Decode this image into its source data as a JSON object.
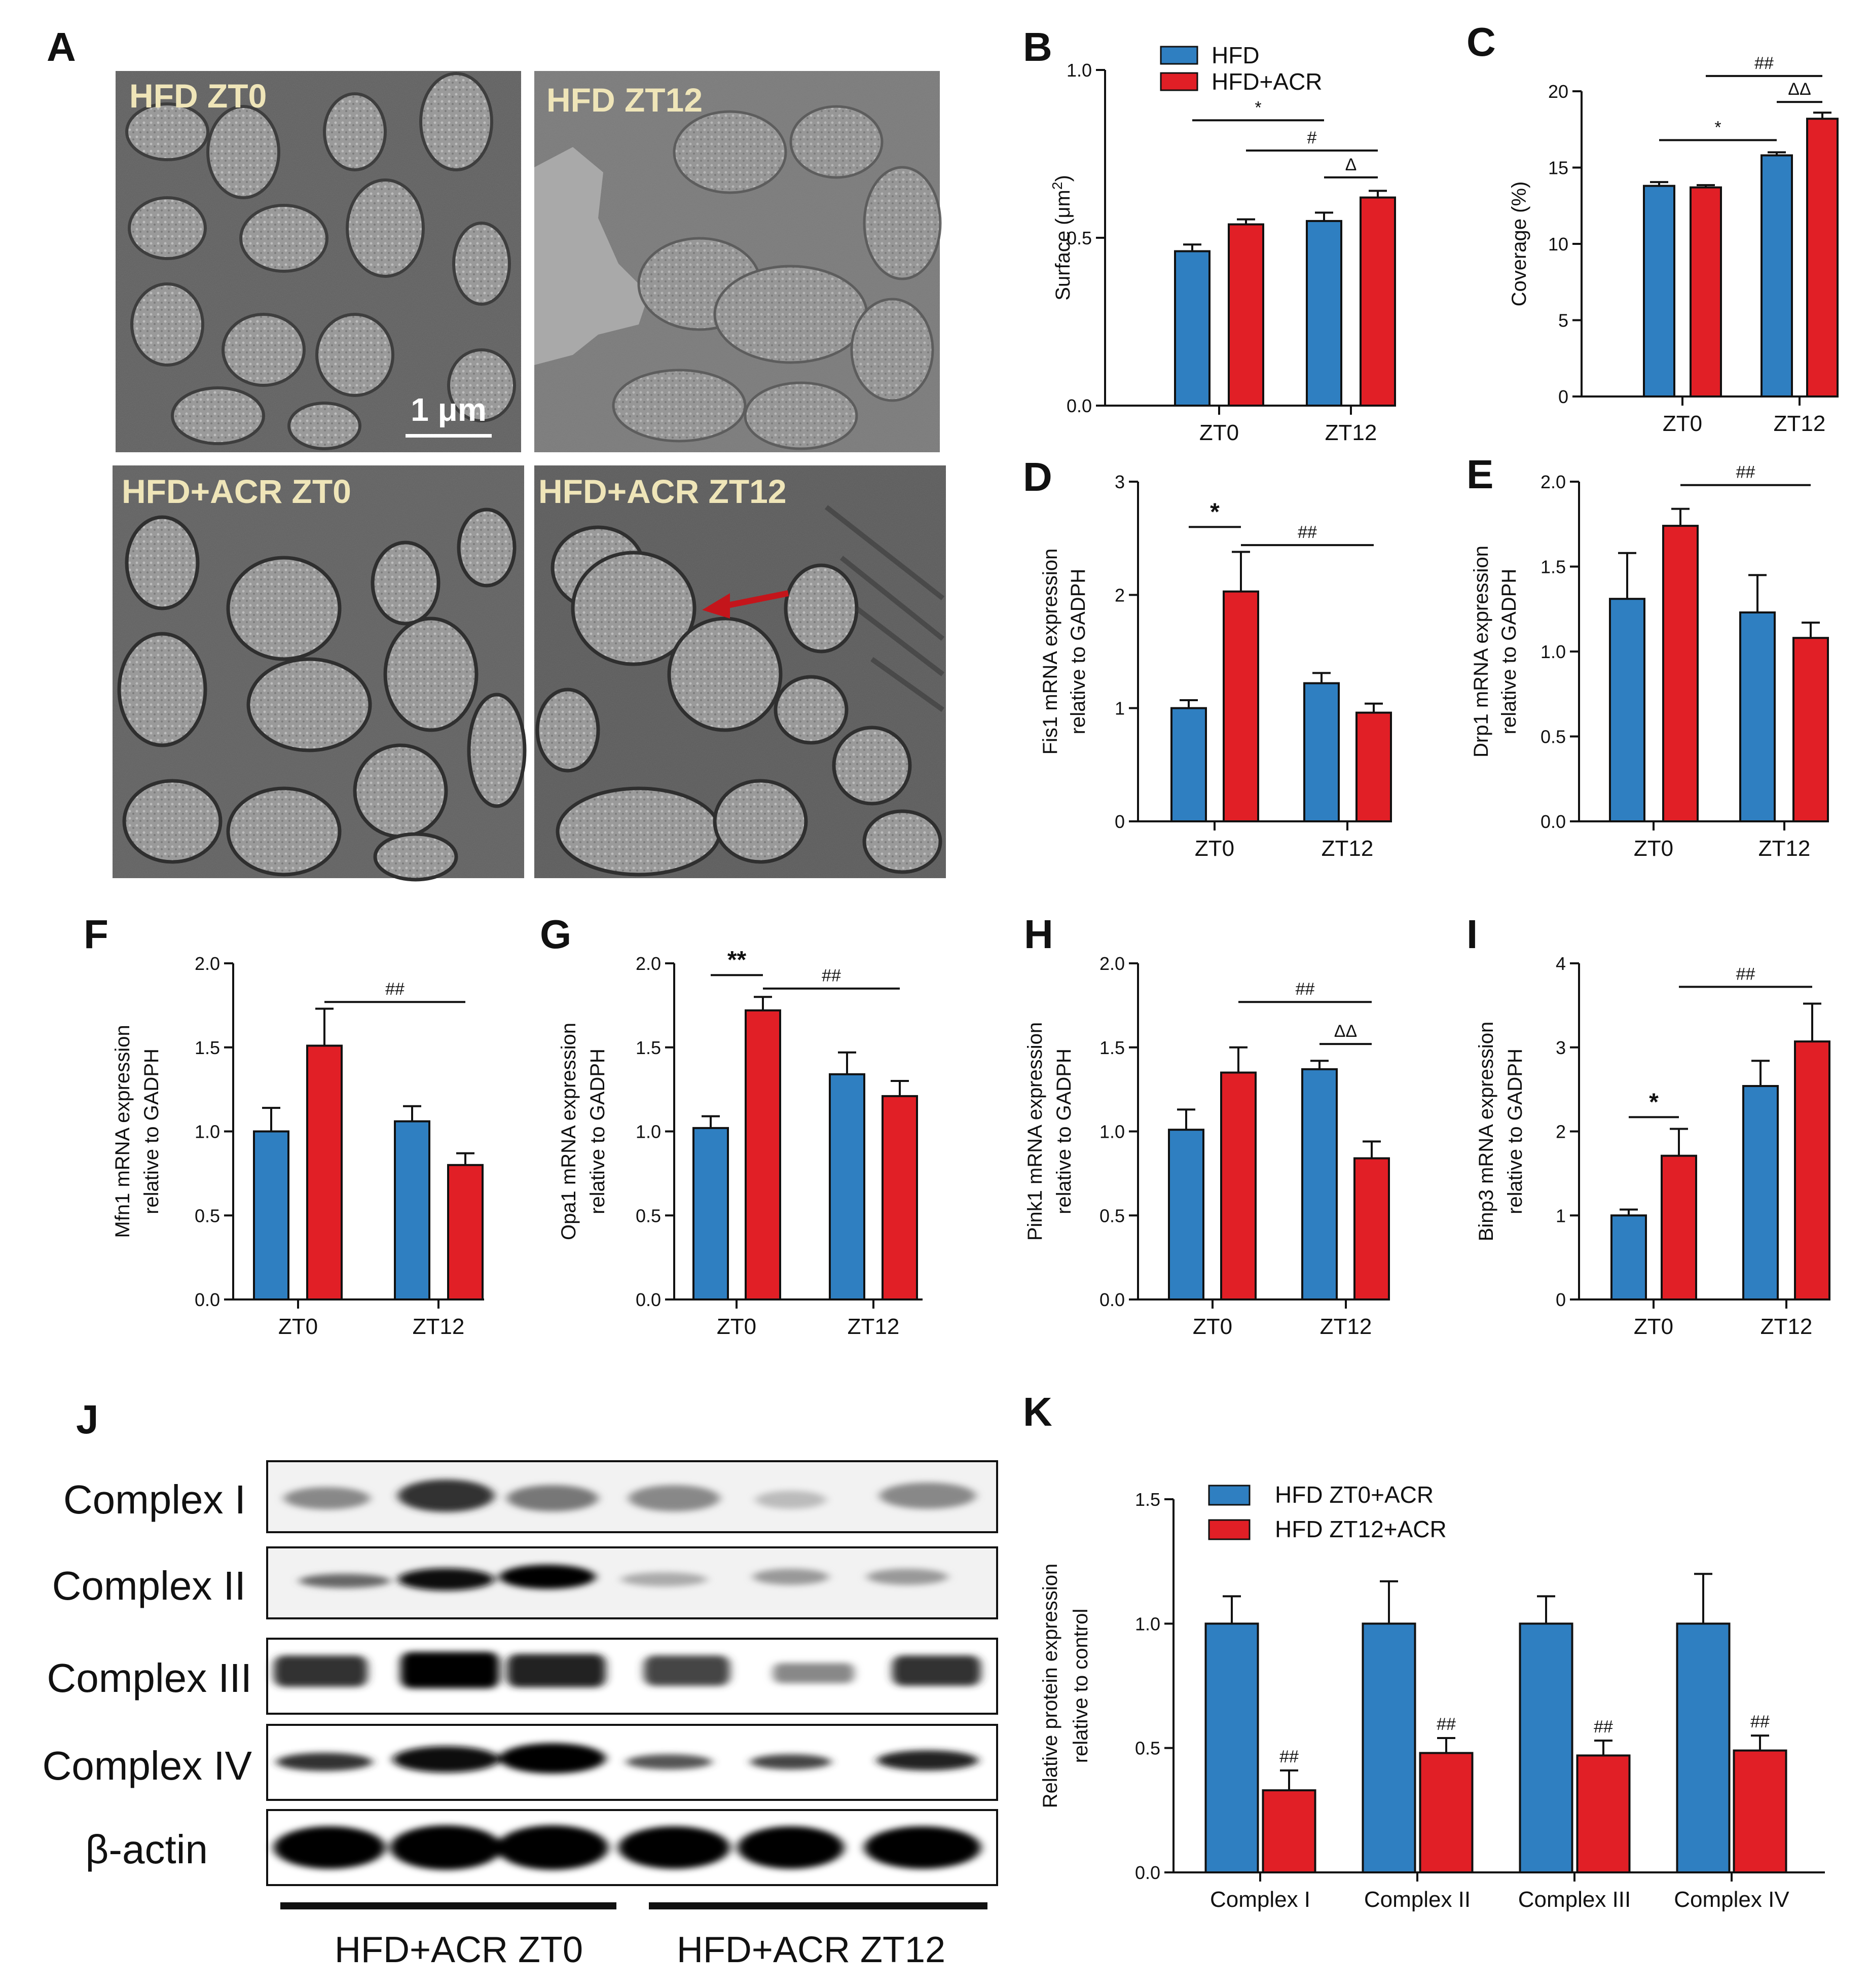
{
  "colors": {
    "hfd": "#2f7fc1",
    "acr": "#e11f26",
    "axis": "#111111",
    "em_label": "#efe5b8",
    "arrow": "#c4151b"
  },
  "panel_labels": {
    "A": "A",
    "B": "B",
    "C": "C",
    "D": "D",
    "E": "E",
    "F": "F",
    "G": "G",
    "H": "H",
    "I": "I",
    "J": "J",
    "K": "K"
  },
  "em": {
    "labels": [
      "HFD ZT0",
      "HFD ZT12",
      "HFD+ACR ZT0",
      "HFD+ACR ZT12"
    ],
    "scale_bar": "1 μm"
  },
  "legend_main": {
    "hfd": "HFD",
    "acr": "HFD+ACR"
  },
  "legend_k": {
    "zt0": "HFD ZT0+ACR",
    "zt12": "HFD ZT12+ACR"
  },
  "western": {
    "bands": [
      "Complex I",
      "Complex II",
      "Complex III",
      "Complex IV",
      "β-actin"
    ],
    "groups": [
      "HFD+ACR ZT0",
      "HFD+ACR ZT12"
    ]
  },
  "chart_data": [
    {
      "id": "B",
      "type": "bar",
      "categories": [
        "ZT0",
        "ZT12"
      ],
      "ylabel": "Surface (μm²)",
      "ylabel_pre": "Surface (μm",
      "ylabel_sup": "2",
      "ylabel_post": ")",
      "ylim": [
        0,
        1.0
      ],
      "yticks": [
        0.0,
        0.5,
        1.0
      ],
      "ytick_labels": [
        "0.0",
        "0.5",
        "1.0"
      ],
      "series": [
        {
          "name": "HFD",
          "values": [
            0.46,
            0.55
          ],
          "errors": [
            0.02,
            0.025
          ]
        },
        {
          "name": "HFD+ACR",
          "values": [
            0.54,
            0.62
          ],
          "errors": [
            0.015,
            0.02
          ]
        }
      ],
      "annotations": [
        {
          "text": "*",
          "from": [
            0,
            0
          ],
          "to": [
            1,
            0
          ],
          "y": 0.85
        },
        {
          "text": "#",
          "from": [
            0,
            1
          ],
          "to": [
            1,
            1
          ],
          "y": 0.76
        },
        {
          "text": "Δ",
          "from": [
            1,
            0
          ],
          "to": [
            1,
            1
          ],
          "y": 0.68
        }
      ]
    },
    {
      "id": "C",
      "type": "bar",
      "categories": [
        "ZT0",
        "ZT12"
      ],
      "ylabel": "Coverage (%)",
      "ylim": [
        0,
        20
      ],
      "yticks": [
        0,
        5,
        10,
        15,
        20
      ],
      "ytick_labels": [
        "0",
        "5",
        "10",
        "15",
        "20"
      ],
      "series": [
        {
          "name": "HFD",
          "values": [
            13.8,
            15.8
          ],
          "errors": [
            0.25,
            0.2
          ]
        },
        {
          "name": "HFD+ACR",
          "values": [
            13.7,
            18.2
          ],
          "errors": [
            0.15,
            0.4
          ]
        }
      ],
      "annotations": [
        {
          "text": "##",
          "from": [
            0,
            1
          ],
          "to": [
            1,
            1
          ],
          "y": 21.0
        },
        {
          "text": "ΔΔ",
          "from": [
            1,
            0
          ],
          "to": [
            1,
            1
          ],
          "y": 19.3
        },
        {
          "text": "*",
          "from": [
            0,
            0
          ],
          "to": [
            1,
            0
          ],
          "y": 16.8
        }
      ]
    },
    {
      "id": "D",
      "type": "bar",
      "categories": [
        "ZT0",
        "ZT12"
      ],
      "ylabel": "Fis1 mRNA expression relative to GADPH",
      "ylabel_lines": [
        "Fis1 mRNA expression",
        "relative to GADPH"
      ],
      "ylim": [
        0,
        3
      ],
      "yticks": [
        0,
        1,
        2,
        3
      ],
      "ytick_labels": [
        "0",
        "1",
        "2",
        "3"
      ],
      "series": [
        {
          "name": "HFD",
          "values": [
            1.0,
            1.22
          ],
          "errors": [
            0.07,
            0.09
          ]
        },
        {
          "name": "HFD+ACR",
          "values": [
            2.03,
            0.96
          ],
          "errors": [
            0.35,
            0.08
          ]
        }
      ],
      "annotations": [
        {
          "text": "*",
          "from": [
            0,
            0
          ],
          "to": [
            0,
            1
          ],
          "y": 2.6,
          "big": true
        },
        {
          "text": "##",
          "from": [
            0,
            1
          ],
          "to": [
            1,
            1
          ],
          "y": 2.44
        }
      ]
    },
    {
      "id": "E",
      "type": "bar",
      "categories": [
        "ZT0",
        "ZT12"
      ],
      "ylabel": "Drp1 mRNA expression relative to GADPH",
      "ylabel_lines": [
        "Drp1 mRNA expression",
        "relative to GADPH"
      ],
      "ylim": [
        0,
        2.0
      ],
      "yticks": [
        0.0,
        0.5,
        1.0,
        1.5,
        2.0
      ],
      "ytick_labels": [
        "0.0",
        "0.5",
        "1.0",
        "1.5",
        "2.0"
      ],
      "series": [
        {
          "name": "HFD",
          "values": [
            1.31,
            1.23
          ],
          "errors": [
            0.27,
            0.22
          ]
        },
        {
          "name": "HFD+ACR",
          "values": [
            1.74,
            1.08
          ],
          "errors": [
            0.1,
            0.09
          ]
        }
      ],
      "annotations": [
        {
          "text": "##",
          "from": [
            0,
            1
          ],
          "to": [
            1,
            1
          ],
          "y": 1.98
        }
      ]
    },
    {
      "id": "F",
      "type": "bar",
      "categories": [
        "ZT0",
        "ZT12"
      ],
      "ylabel": "Mfn1 mRNA expression relative to GADPH",
      "ylabel_lines": [
        "Mfn1 mRNA expression",
        "relative to GADPH"
      ],
      "ylim": [
        0,
        2.0
      ],
      "yticks": [
        0.0,
        0.5,
        1.0,
        1.5,
        2.0
      ],
      "ytick_labels": [
        "0.0",
        "0.5",
        "1.0",
        "1.5",
        "2.0"
      ],
      "series": [
        {
          "name": "HFD",
          "values": [
            1.0,
            1.06
          ],
          "errors": [
            0.14,
            0.09
          ]
        },
        {
          "name": "HFD+ACR",
          "values": [
            1.51,
            0.8
          ],
          "errors": [
            0.22,
            0.07
          ]
        }
      ],
      "annotations": [
        {
          "text": "##",
          "from": [
            0,
            1
          ],
          "to": [
            1,
            1
          ],
          "y": 1.77
        }
      ]
    },
    {
      "id": "G",
      "type": "bar",
      "categories": [
        "ZT0",
        "ZT12"
      ],
      "ylabel": "Opa1 mRNA expression relative to GADPH",
      "ylabel_lines": [
        "Opa1 mRNA expression",
        "relative to GADPH"
      ],
      "ylim": [
        0,
        2.0
      ],
      "yticks": [
        0.0,
        0.5,
        1.0,
        1.5,
        2.0
      ],
      "ytick_labels": [
        "0.0",
        "0.5",
        "1.0",
        "1.5",
        "2.0"
      ],
      "series": [
        {
          "name": "HFD",
          "values": [
            1.02,
            1.34
          ],
          "errors": [
            0.07,
            0.13
          ]
        },
        {
          "name": "HFD+ACR",
          "values": [
            1.72,
            1.21
          ],
          "errors": [
            0.08,
            0.09
          ]
        }
      ],
      "annotations": [
        {
          "text": "**",
          "from": [
            0,
            0
          ],
          "to": [
            0,
            1
          ],
          "y": 1.93,
          "big": true
        },
        {
          "text": "##",
          "from": [
            0,
            1
          ],
          "to": [
            1,
            1
          ],
          "y": 1.85
        }
      ]
    },
    {
      "id": "H",
      "type": "bar",
      "categories": [
        "ZT0",
        "ZT12"
      ],
      "ylabel": "Pink1 mRNA expression relative to GADPH",
      "ylabel_lines": [
        "Pink1 mRNA expression",
        "relative to GADPH"
      ],
      "ylim": [
        0,
        2.0
      ],
      "yticks": [
        0.0,
        0.5,
        1.0,
        1.5,
        2.0
      ],
      "ytick_labels": [
        "0.0",
        "0.5",
        "1.0",
        "1.5",
        "2.0"
      ],
      "series": [
        {
          "name": "HFD",
          "values": [
            1.01,
            1.37
          ],
          "errors": [
            0.12,
            0.05
          ]
        },
        {
          "name": "HFD+ACR",
          "values": [
            1.35,
            0.84
          ],
          "errors": [
            0.15,
            0.1
          ]
        }
      ],
      "annotations": [
        {
          "text": "##",
          "from": [
            0,
            1
          ],
          "to": [
            1,
            1
          ],
          "y": 1.77
        },
        {
          "text": "ΔΔ",
          "from": [
            1,
            0
          ],
          "to": [
            1,
            1
          ],
          "y": 1.52
        }
      ]
    },
    {
      "id": "I",
      "type": "bar",
      "categories": [
        "ZT0",
        "ZT12"
      ],
      "ylabel": "Binp3 mRNA expression relative to GADPH",
      "ylabel_lines": [
        "Binp3 mRNA expression",
        "relative to GADPH"
      ],
      "ylim": [
        0,
        4
      ],
      "yticks": [
        0,
        1,
        2,
        3,
        4
      ],
      "ytick_labels": [
        "0",
        "1",
        "2",
        "3",
        "4"
      ],
      "series": [
        {
          "name": "HFD",
          "values": [
            1.0,
            2.54
          ],
          "errors": [
            0.07,
            0.3
          ]
        },
        {
          "name": "HFD+ACR",
          "values": [
            1.71,
            3.07
          ],
          "errors": [
            0.32,
            0.45
          ]
        }
      ],
      "annotations": [
        {
          "text": "*",
          "from": [
            0,
            0
          ],
          "to": [
            0,
            1
          ],
          "y": 2.17,
          "big": true
        },
        {
          "text": "##",
          "from": [
            0,
            1
          ],
          "to": [
            1,
            1
          ],
          "y": 3.72
        }
      ]
    },
    {
      "id": "K",
      "type": "bar",
      "categories": [
        "Complex I",
        "Complex II",
        "Complex III",
        "Complex IV"
      ],
      "ylabel": "Relative protein expression relative to control",
      "ylabel_lines": [
        "Relative protein expression",
        "relative to control"
      ],
      "ylim": [
        0,
        1.5
      ],
      "yticks": [
        0.0,
        0.5,
        1.0,
        1.5
      ],
      "ytick_labels": [
        "0.0",
        "0.5",
        "1.0",
        "1.5"
      ],
      "series": [
        {
          "name": "HFD ZT0+ACR",
          "values": [
            1.0,
            1.0,
            1.0,
            1.0
          ],
          "errors": [
            0.11,
            0.17,
            0.11,
            0.2
          ]
        },
        {
          "name": "HFD ZT12+ACR",
          "values": [
            0.33,
            0.48,
            0.47,
            0.49
          ],
          "errors": [
            0.08,
            0.06,
            0.06,
            0.06
          ]
        }
      ],
      "bar_labels": [
        "##",
        "##",
        "##",
        "##"
      ]
    }
  ]
}
